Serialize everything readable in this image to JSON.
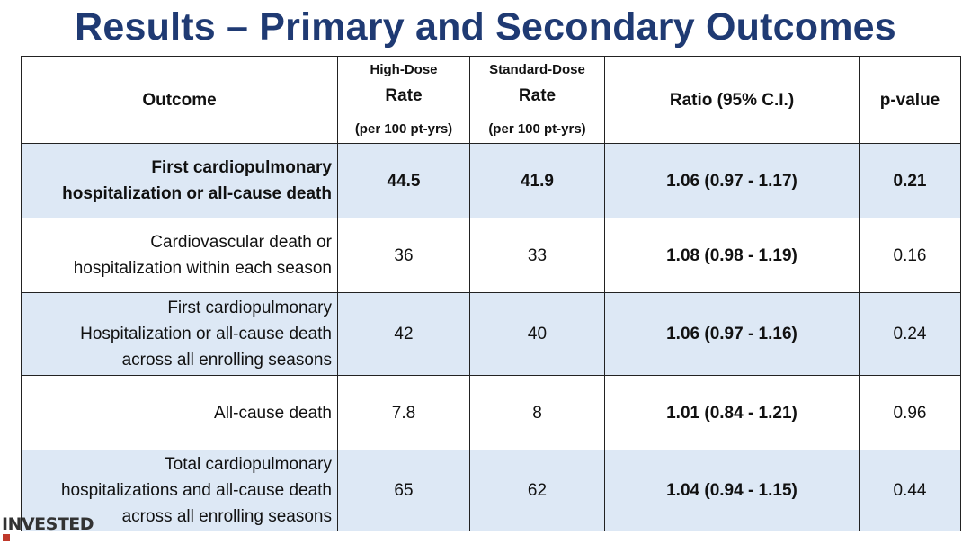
{
  "title": "Results – Primary and Secondary Outcomes",
  "table": {
    "headers": {
      "outcome": "Outcome",
      "high_top": "High-Dose",
      "high_mid": "Rate",
      "high_sub": "(per 100 pt-yrs)",
      "std_top": "Standard-Dose",
      "std_mid": "Rate",
      "std_sub": "(per 100 pt-yrs)",
      "ratio": "Ratio (95% C.I.)",
      "pvalue": "p-value"
    },
    "rows": [
      {
        "outcome_lines": [
          "First cardiopulmonary",
          "hospitalization or all-cause death"
        ],
        "high": "44.5",
        "standard": "41.9",
        "ratio": "1.06 (0.97 - 1.17)",
        "p": "0.21"
      },
      {
        "outcome_lines": [
          "Cardiovascular death or",
          "hospitalization within each season"
        ],
        "high": "36",
        "standard": "33",
        "ratio": "1.08 (0.98 - 1.19)",
        "p": "0.16"
      },
      {
        "outcome_lines": [
          "First cardiopulmonary",
          "Hospitalization or all-cause death",
          "across all enrolling seasons"
        ],
        "high": "42",
        "standard": "40",
        "ratio": "1.06 (0.97 - 1.16)",
        "p": "0.24"
      },
      {
        "outcome_lines": [
          "All-cause death"
        ],
        "high": "7.8",
        "standard": "8",
        "ratio": "1.01 (0.84 - 1.21)",
        "p": "0.96"
      },
      {
        "outcome_lines": [
          "Total cardiopulmonary",
          "hospitalizations and all-cause death",
          "across all enrolling seasons"
        ],
        "high": "65",
        "standard": "62",
        "ratio": "1.04 (0.94 - 1.15)",
        "p": "0.44"
      }
    ]
  },
  "logo": {
    "text": "INVESTED"
  },
  "colors": {
    "title": "#1f3a73",
    "shade_row": "#dde8f5",
    "logo_mark": "#c0392b"
  }
}
